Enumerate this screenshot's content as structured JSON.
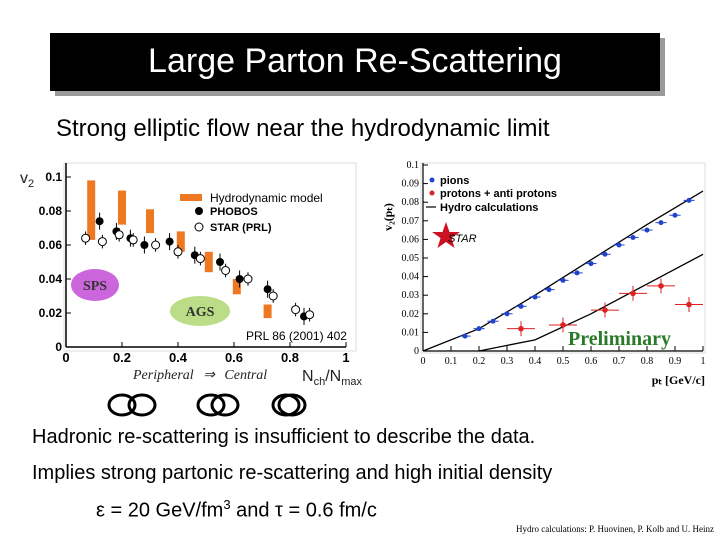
{
  "title": "Large Parton Re-Scattering",
  "subtitle": "Strong elliptic flow near the hydrodynamic limit",
  "left_chart_labels": {
    "ylabel_v": "v",
    "ylabel_sub": "2",
    "legend_hydro": "Hydrodynamic model",
    "legend_phobos": "PHOBOS",
    "legend_star": "STAR (PRL)",
    "badge_sps": "SPS",
    "badge_ags": "AGS",
    "reference": "PRL 86 (2001) 402",
    "peripheral": "Peripheral",
    "arrow": "⇒",
    "central": "Central",
    "xlabel_main": "N",
    "xlabel_sub1": "ch",
    "xlabel_mid": "/N",
    "xlabel_sub2": "max"
  },
  "right_chart_labels": {
    "ylabel": "v₂(pₜ)",
    "legend_pions": "pions",
    "legend_protons": "protons + anti protons",
    "legend_hydro": "Hydro calculations",
    "star_label": "STAR",
    "preliminary": "Preliminary",
    "xlabel": "pₜ [GeV/c]"
  },
  "lines": {
    "line1": "Hadronic re-scattering is insufficient to describe the data.",
    "line2": "Implies strong partonic re-scattering and high initial density",
    "line3_eps": "ε = 20 GeV/fm",
    "line3_sup": "3",
    "line3_rest": " and τ = 0.6 fm/c"
  },
  "credit": "Hydro calculations: P. Huovinen, P. Kolb and U. Heinz",
  "colors": {
    "hydro_bar": "#ee7722",
    "badge_fill": "#cc66dd",
    "ags_fill": "#bbdd88",
    "pion": "#2244cc",
    "proton": "#dd2222",
    "preliminary": "#2a7a2a"
  },
  "chart_data": [
    {
      "type": "scatter",
      "xlim": [
        0,
        1
      ],
      "ylim": [
        0,
        0.1
      ],
      "x_ticks": [
        0,
        0.2,
        0.4,
        0.6,
        0.8,
        1
      ],
      "x_tick_labels": [
        "0",
        "0.2",
        "0.4",
        "0.6",
        "0.8",
        "1"
      ],
      "y_ticks": [
        0,
        0.02,
        0.04,
        0.06,
        0.08,
        0.1
      ],
      "y_tick_labels": [
        "0",
        "0.02",
        "0.04",
        "0.06",
        "0.08",
        "0.1"
      ],
      "hydro_bands": [
        {
          "x": 0.09,
          "ymin": 0.063,
          "ymax": 0.098
        },
        {
          "x": 0.2,
          "ymin": 0.072,
          "ymax": 0.092
        },
        {
          "x": 0.3,
          "ymin": 0.067,
          "ymax": 0.081
        },
        {
          "x": 0.41,
          "ymin": 0.056,
          "ymax": 0.068
        },
        {
          "x": 0.51,
          "ymin": 0.044,
          "ymax": 0.056
        },
        {
          "x": 0.61,
          "ymin": 0.031,
          "ymax": 0.04
        },
        {
          "x": 0.72,
          "ymin": 0.017,
          "ymax": 0.025
        }
      ],
      "series": [
        {
          "name": "PHOBOS",
          "x": [
            0.12,
            0.18,
            0.23,
            0.28,
            0.37,
            0.46,
            0.55,
            0.62,
            0.72,
            0.85
          ],
          "y": [
            0.074,
            0.068,
            0.064,
            0.06,
            0.062,
            0.054,
            0.05,
            0.04,
            0.034,
            0.018
          ]
        },
        {
          "name": "STAR (PRL)",
          "x": [
            0.07,
            0.13,
            0.19,
            0.24,
            0.32,
            0.4,
            0.48,
            0.57,
            0.65,
            0.74,
            0.82,
            0.87
          ],
          "y": [
            0.064,
            0.062,
            0.066,
            0.063,
            0.06,
            0.056,
            0.052,
            0.045,
            0.04,
            0.03,
            0.022,
            0.019
          ]
        }
      ]
    },
    {
      "type": "scatter",
      "xlim": [
        0,
        1
      ],
      "ylim": [
        0,
        0.1
      ],
      "x_ticks": [
        0,
        0.1,
        0.2,
        0.3,
        0.4,
        0.5,
        0.6,
        0.7,
        0.8,
        0.9,
        1
      ],
      "x_tick_labels": [
        "0",
        "0.1",
        "0.2",
        "0.3",
        "0.4",
        "0.5",
        "0.6",
        "0.7",
        "0.8",
        "0.9",
        "1"
      ],
      "y_ticks": [
        0,
        0.01,
        0.02,
        0.03,
        0.04,
        0.05,
        0.06,
        0.07,
        0.08,
        0.09,
        0.1
      ],
      "y_tick_labels": [
        "0",
        "0.01",
        "0.02",
        "0.03",
        "0.04",
        "0.05",
        "0.06",
        "0.07",
        "0.08",
        "0.09",
        "0.1"
      ],
      "series": [
        {
          "name": "pions",
          "x": [
            0.15,
            0.2,
            0.25,
            0.3,
            0.35,
            0.4,
            0.45,
            0.5,
            0.55,
            0.6,
            0.65,
            0.7,
            0.75,
            0.8,
            0.85,
            0.9,
            0.95
          ],
          "y": [
            0.008,
            0.012,
            0.016,
            0.02,
            0.024,
            0.029,
            0.033,
            0.038,
            0.042,
            0.047,
            0.052,
            0.057,
            0.061,
            0.065,
            0.069,
            0.073,
            0.081
          ]
        },
        {
          "name": "protons + anti protons",
          "x": [
            0.35,
            0.5,
            0.65,
            0.75,
            0.85,
            0.95
          ],
          "y": [
            0.012,
            0.014,
            0.022,
            0.031,
            0.035,
            0.025
          ]
        }
      ],
      "curves": [
        {
          "name": "pions",
          "x": [
            0,
            0.2,
            0.4,
            0.6,
            0.8,
            1
          ],
          "y": [
            0,
            0.012,
            0.03,
            0.049,
            0.068,
            0.086
          ]
        },
        {
          "name": "protons + anti protons",
          "x": [
            0.2,
            0.4,
            0.6,
            0.8,
            1
          ],
          "y": [
            0,
            0.006,
            0.02,
            0.036,
            0.052
          ]
        }
      ]
    }
  ]
}
